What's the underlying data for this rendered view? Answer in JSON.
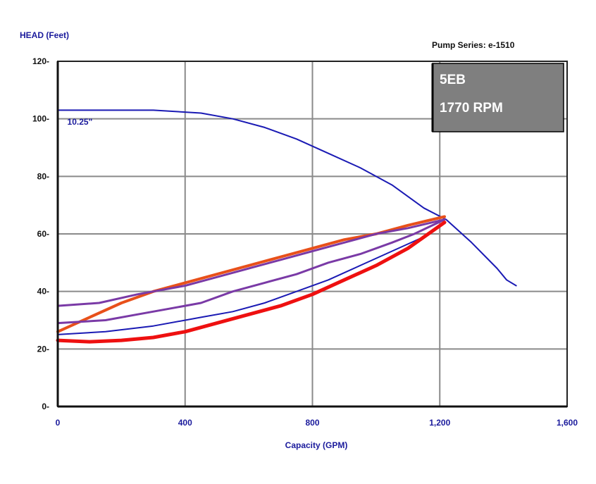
{
  "chart_data": {
    "type": "line",
    "title": "Pump Series: e-1510",
    "ylabel": "HEAD (Feet)",
    "xlabel": "Capacity (GPM)",
    "xlim": [
      0,
      1600
    ],
    "ylim": [
      0,
      120
    ],
    "grid": true,
    "x_ticks": [
      0,
      400,
      800,
      1200,
      1600
    ],
    "x_tick_labels": [
      "0",
      "400",
      "800",
      "1,200",
      "1,600"
    ],
    "y_ticks": [
      0,
      20,
      40,
      60,
      80,
      100,
      120
    ],
    "y_tick_labels": [
      "0-",
      "20-",
      "40-",
      "60-",
      "80-",
      "100-",
      "120-"
    ],
    "badge": {
      "model": "5EB",
      "speed": "1770 RPM"
    },
    "annotations": [
      {
        "text": "10.25\"",
        "x": 30,
        "y": 98
      }
    ],
    "series": [
      {
        "name": "impeller-10.25",
        "color": "#1a1ab4",
        "width": 2,
        "points": [
          [
            0,
            103
          ],
          [
            150,
            103
          ],
          [
            300,
            103
          ],
          [
            450,
            102
          ],
          [
            550,
            100
          ],
          [
            650,
            97
          ],
          [
            750,
            93
          ],
          [
            850,
            88
          ],
          [
            950,
            83
          ],
          [
            1050,
            77
          ],
          [
            1150,
            69
          ],
          [
            1220,
            65
          ],
          [
            1300,
            57
          ],
          [
            1380,
            48
          ],
          [
            1410,
            44
          ],
          [
            1440,
            42
          ]
        ]
      },
      {
        "name": "system-orange",
        "color": "#e8501a",
        "width": 4,
        "points": [
          [
            0,
            26
          ],
          [
            100,
            31
          ],
          [
            200,
            36
          ],
          [
            300,
            40
          ],
          [
            400,
            43
          ],
          [
            500,
            46
          ],
          [
            600,
            49
          ],
          [
            700,
            52
          ],
          [
            800,
            55
          ],
          [
            900,
            58
          ],
          [
            1000,
            60
          ],
          [
            1100,
            63
          ],
          [
            1215,
            66
          ]
        ]
      },
      {
        "name": "system-purple-high",
        "color": "#7a3aa6",
        "width": 3,
        "points": [
          [
            0,
            35
          ],
          [
            130,
            36
          ],
          [
            250,
            39
          ],
          [
            400,
            42
          ],
          [
            500,
            45
          ],
          [
            600,
            48
          ],
          [
            700,
            51
          ],
          [
            800,
            54
          ],
          [
            900,
            57
          ],
          [
            1000,
            60
          ],
          [
            1100,
            62
          ],
          [
            1215,
            65
          ]
        ]
      },
      {
        "name": "system-purple-mid",
        "color": "#7a3aa6",
        "width": 3,
        "points": [
          [
            0,
            29
          ],
          [
            150,
            30
          ],
          [
            250,
            32
          ],
          [
            350,
            34
          ],
          [
            450,
            36
          ],
          [
            550,
            40
          ],
          [
            650,
            43
          ],
          [
            750,
            46
          ],
          [
            850,
            50
          ],
          [
            950,
            53
          ],
          [
            1050,
            57
          ],
          [
            1120,
            60
          ],
          [
            1215,
            65
          ]
        ]
      },
      {
        "name": "system-blue-low",
        "color": "#1a1ab4",
        "width": 2,
        "points": [
          [
            0,
            25
          ],
          [
            150,
            26
          ],
          [
            300,
            28
          ],
          [
            450,
            31
          ],
          [
            550,
            33
          ],
          [
            650,
            36
          ],
          [
            750,
            40
          ],
          [
            850,
            44
          ],
          [
            950,
            49
          ],
          [
            1050,
            54
          ],
          [
            1150,
            59
          ],
          [
            1215,
            64
          ]
        ]
      },
      {
        "name": "system-red",
        "color": "#ee1010",
        "width": 5,
        "points": [
          [
            0,
            23
          ],
          [
            100,
            22.5
          ],
          [
            200,
            23
          ],
          [
            300,
            24
          ],
          [
            400,
            26
          ],
          [
            500,
            29
          ],
          [
            600,
            32
          ],
          [
            700,
            35
          ],
          [
            800,
            39
          ],
          [
            900,
            44
          ],
          [
            1000,
            49
          ],
          [
            1100,
            55
          ],
          [
            1215,
            64
          ]
        ]
      }
    ]
  }
}
